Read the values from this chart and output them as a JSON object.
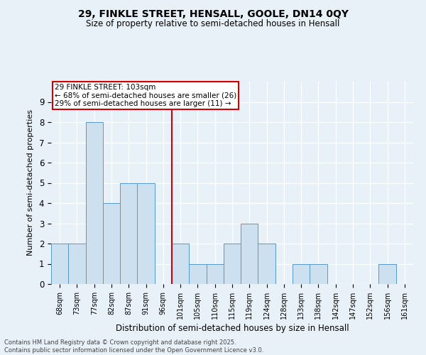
{
  "title_line1": "29, FINKLE STREET, HENSALL, GOOLE, DN14 0QY",
  "title_line2": "Size of property relative to semi-detached houses in Hensall",
  "xlabel": "Distribution of semi-detached houses by size in Hensall",
  "ylabel": "Number of semi-detached properties",
  "categories": [
    "68sqm",
    "73sqm",
    "77sqm",
    "82sqm",
    "87sqm",
    "91sqm",
    "96sqm",
    "101sqm",
    "105sqm",
    "110sqm",
    "115sqm",
    "119sqm",
    "124sqm",
    "128sqm",
    "133sqm",
    "138sqm",
    "142sqm",
    "147sqm",
    "152sqm",
    "156sqm",
    "161sqm"
  ],
  "values": [
    2,
    2,
    8,
    4,
    5,
    5,
    0,
    2,
    1,
    1,
    2,
    3,
    2,
    0,
    1,
    1,
    0,
    0,
    0,
    1,
    0
  ],
  "bar_color": "#cce0f0",
  "bar_edge_color": "#5599cc",
  "ref_line_index": 7,
  "annotation_title": "29 FINKLE STREET: 103sqm",
  "annotation_line2": "← 68% of semi-detached houses are smaller (26)",
  "annotation_line3": "29% of semi-detached houses are larger (11) →",
  "annotation_box_color": "#ffffff",
  "annotation_box_edge": "#cc0000",
  "ref_line_color": "#cc0000",
  "ylim": [
    0,
    10
  ],
  "yticks": [
    0,
    1,
    2,
    3,
    4,
    5,
    6,
    7,
    8,
    9
  ],
  "background_color": "#e8f0f8",
  "grid_color": "#ffffff",
  "title_fontsize": 10,
  "subtitle_fontsize": 8.5,
  "footer_line1": "Contains HM Land Registry data © Crown copyright and database right 2025.",
  "footer_line2": "Contains public sector information licensed under the Open Government Licence v3.0."
}
